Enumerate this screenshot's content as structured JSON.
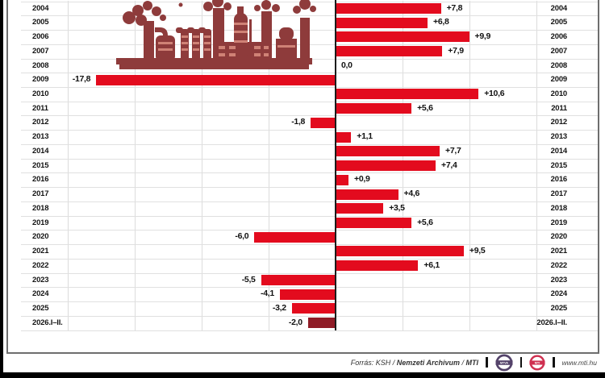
{
  "chart_data": {
    "type": "bar",
    "orientation": "horizontal",
    "categories": [
      "2004",
      "2005",
      "2006",
      "2007",
      "2008",
      "2009",
      "2010",
      "2011",
      "2012",
      "2013",
      "2014",
      "2015",
      "2016",
      "2017",
      "2018",
      "2019",
      "2020",
      "2021",
      "2022",
      "2023",
      "2024",
      "2025",
      "2026.I–II."
    ],
    "values": [
      7.8,
      6.8,
      9.9,
      7.9,
      0.0,
      -17.8,
      10.6,
      5.6,
      -1.8,
      1.1,
      7.7,
      7.4,
      0.9,
      4.6,
      3.5,
      5.6,
      -6.0,
      9.5,
      6.1,
      -5.5,
      -4.1,
      -3.2,
      -2.0
    ],
    "value_labels": [
      "+7,8",
      "+6,8",
      "+9,9",
      "+7,9",
      "0,0",
      "-17,8",
      "+10,6",
      "+5,6",
      "-1,8",
      "+1,1",
      "+7,7",
      "+7,4",
      "+0,9",
      "+4,6",
      "+3,5",
      "+5,6",
      "-6,0",
      "+9,5",
      "+6,1",
      "-5,5",
      "-4,1",
      "-3,2",
      "-2,0"
    ],
    "xlim": [
      -20,
      20
    ],
    "grid_step": 5,
    "grid": true,
    "bar_color": "#e30b1e",
    "final_bar_color": "#8f1b26",
    "year_labels_both_sides": true
  },
  "illustration": {
    "name": "factory-silhouette",
    "main_color": "#8e3b3b",
    "accent_color": "#cf8276"
  },
  "footer": {
    "source_prefix": "Forrás: KSH /",
    "source_bold": "Nemzeti Archivum",
    "source_sep": "/",
    "source_agency": "MTI",
    "logo_mtva": "MTVA",
    "logo_mti": "MTI",
    "website": "www.mti.hu"
  }
}
